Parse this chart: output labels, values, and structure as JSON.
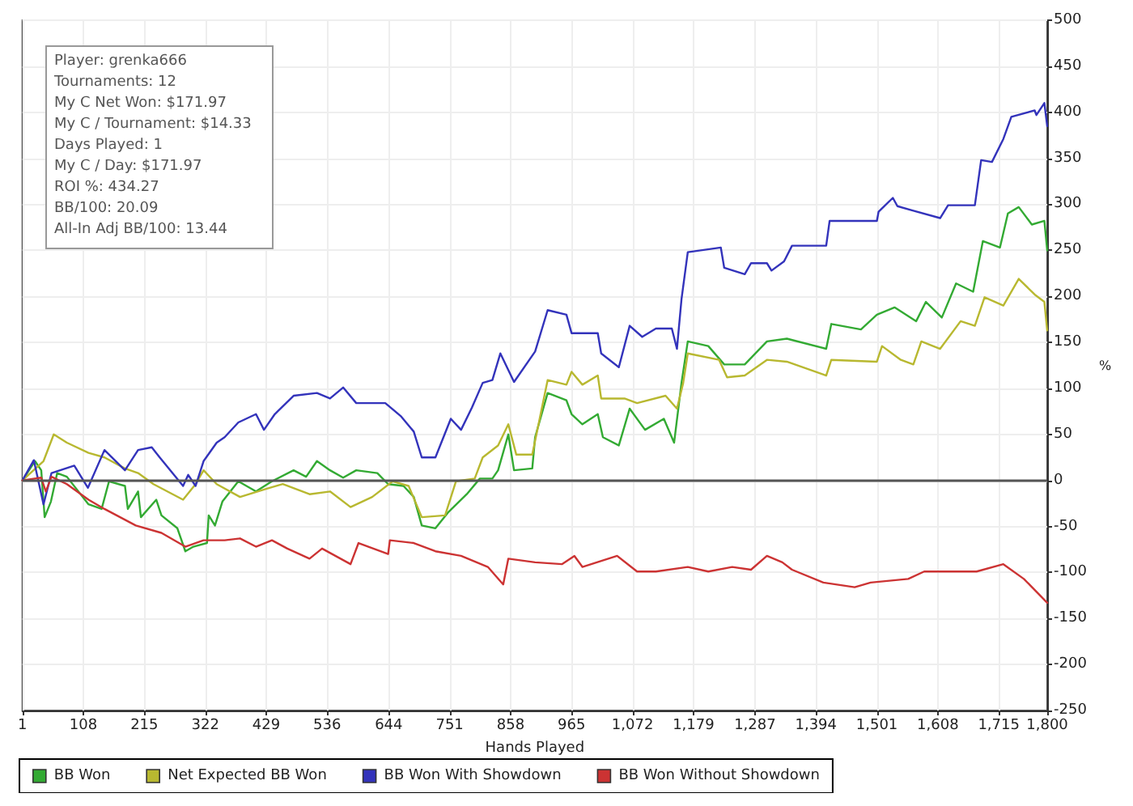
{
  "chart_data": {
    "type": "line",
    "xlabel": "Hands Played",
    "ylabel": "%",
    "xlim": [
      1,
      1800
    ],
    "xticks": [
      1,
      108,
      215,
      322,
      429,
      536,
      644,
      751,
      858,
      965,
      {
        "value": 1072,
        "label": "1,072"
      },
      {
        "value": 1179,
        "label": "1,179"
      },
      {
        "value": 1287,
        "label": "1,287"
      },
      {
        "value": 1394,
        "label": "1,394"
      },
      {
        "value": 1501,
        "label": "1,501"
      },
      {
        "value": 1608,
        "label": "1,608"
      },
      {
        "value": 1715,
        "label": "1,715"
      },
      {
        "value": 1800,
        "label": "1,800"
      }
    ],
    "ylim": [
      -250,
      500
    ],
    "yticks": [
      -250,
      -200,
      -150,
      -100,
      -50,
      0,
      50,
      100,
      150,
      200,
      250,
      300,
      350,
      400,
      450,
      500
    ],
    "grid": true,
    "legend": "bottom left",
    "marker": "none",
    "ref_lines": [
      {
        "axis": "y",
        "value": 0,
        "color": "#555555"
      }
    ],
    "annotations": [
      "Player: grenka666",
      "Tournaments: 12",
      "My C Net Won: $171.97",
      "My C / Tournament: $14.33",
      "Days Played: 1",
      "My C / Day: $171.97",
      "ROI %: 434.27",
      "BB/100: 20.09",
      "All-In Adj BB/100: 13.44"
    ],
    "series": [
      {
        "name": "BB Won",
        "color": "#33aa33",
        "x": [
          1,
          23,
          34,
          40,
          51,
          62,
          79,
          117,
          140,
          153,
          181,
          186,
          204,
          209,
          236,
          245,
          273,
          287,
          301,
          325,
          328,
          339,
          352,
          380,
          411,
          439,
          477,
          499,
          518,
          541,
          564,
          587,
          624,
          643,
          670,
          688,
          702,
          726,
          748,
          781,
          804,
          826,
          836,
          854,
          864,
          896,
          901,
          923,
          956,
          965,
          984,
          1011,
          1020,
          1048,
          1067,
          1094,
          1127,
          1145,
          1158,
          1169,
          1205,
          1233,
          1269,
          1308,
          1343,
          1412,
          1421,
          1473,
          1501,
          1532,
          1570,
          1587,
          1615,
          1640,
          1670,
          1687,
          1717,
          1731,
          1750,
          1773,
          1795,
          1800
        ],
        "values": [
          0,
          21,
          11,
          -40,
          -23,
          8,
          4,
          -26,
          -31,
          -1,
          -6,
          -31,
          -12,
          -40,
          -21,
          -38,
          -52,
          -77,
          -72,
          -68,
          -38,
          -49,
          -23,
          -1,
          -12,
          -1,
          11,
          4,
          21,
          11,
          3,
          11,
          8,
          -4,
          -6,
          -18,
          -49,
          -52,
          -35,
          -15,
          2,
          2,
          11,
          50,
          11,
          13,
          47,
          95,
          87,
          72,
          61,
          72,
          47,
          38,
          78,
          55,
          67,
          41,
          106,
          151,
          146,
          126,
          126,
          151,
          154,
          143,
          170,
          164,
          180,
          188,
          173,
          194,
          177,
          214,
          205,
          260,
          253,
          290,
          297,
          278,
          282,
          250
        ]
      },
      {
        "name": "Net Expected BB Won",
        "color": "#b8b830",
        "x": [
          1,
          38,
          56,
          79,
          117,
          145,
          181,
          204,
          231,
          283,
          305,
          319,
          342,
          383,
          430,
          458,
          505,
          541,
          577,
          615,
          651,
          679,
          702,
          743,
          762,
          795,
          809,
          836,
          854,
          868,
          896,
          923,
          956,
          965,
          984,
          1011,
          1017,
          1058,
          1080,
          1130,
          1150,
          1161,
          1169,
          1224,
          1238,
          1269,
          1308,
          1343,
          1412,
          1421,
          1501,
          1510,
          1543,
          1565,
          1579,
          1612,
          1648,
          1673,
          1690,
          1723,
          1750,
          1778,
          1795,
          1800
        ],
        "values": [
          0,
          21,
          50,
          41,
          30,
          25,
          13,
          8,
          -4,
          -21,
          -4,
          11,
          -4,
          -18,
          -9,
          -4,
          -15,
          -12,
          -29,
          -18,
          -1,
          -6,
          -40,
          -38,
          -1,
          2,
          25,
          38,
          61,
          28,
          28,
          109,
          104,
          118,
          104,
          114,
          89,
          89,
          84,
          92,
          78,
          106,
          138,
          131,
          112,
          114,
          131,
          129,
          114,
          131,
          129,
          146,
          131,
          126,
          151,
          143,
          173,
          168,
          199,
          190,
          219,
          202,
          194,
          163
        ]
      },
      {
        "name": "BB Won With Showdown",
        "color": "#3333bb",
        "x": [
          1,
          21,
          38,
          52,
          92,
          116,
          145,
          181,
          204,
          228,
          242,
          283,
          292,
          305,
          319,
          342,
          356,
          380,
          411,
          425,
          444,
          477,
          518,
          541,
          564,
          587,
          638,
          665,
          688,
          702,
          726,
          753,
          771,
          790,
          809,
          826,
          840,
          864,
          901,
          923,
          956,
          965,
          1011,
          1017,
          1048,
          1067,
          1089,
          1113,
          1141,
          1150,
          1158,
          1169,
          1227,
          1233,
          1269,
          1280,
          1308,
          1316,
          1338,
          1352,
          1412,
          1418,
          1501,
          1504,
          1529,
          1537,
          1565,
          1612,
          1626,
          1673,
          1684,
          1703,
          1723,
          1737,
          1778,
          1781,
          1795,
          1800
        ],
        "values": [
          0,
          22,
          -26,
          8,
          16,
          -8,
          33,
          11,
          33,
          36,
          25,
          -6,
          6,
          -6,
          21,
          41,
          47,
          63,
          72,
          55,
          72,
          92,
          95,
          89,
          101,
          84,
          84,
          70,
          53,
          25,
          25,
          67,
          55,
          79,
          106,
          109,
          138,
          107,
          140,
          185,
          180,
          160,
          160,
          138,
          123,
          168,
          156,
          165,
          165,
          143,
          197,
          248,
          253,
          231,
          224,
          236,
          236,
          228,
          238,
          255,
          255,
          282,
          282,
          292,
          307,
          298,
          293,
          285,
          299,
          299,
          348,
          346,
          371,
          395,
          402,
          397,
          410,
          385
        ]
      },
      {
        "name": "BB Won Without Showdown",
        "color": "#cc3333",
        "x": [
          1,
          34,
          42,
          52,
          79,
          117,
          145,
          200,
          245,
          287,
          319,
          356,
          383,
          411,
          439,
          466,
          505,
          527,
          577,
          591,
          643,
          646,
          688,
          726,
          771,
          818,
          845,
          854,
          901,
          948,
          970,
          984,
          1045,
          1080,
          1113,
          1169,
          1205,
          1247,
          1280,
          1308,
          1335,
          1352,
          1407,
          1462,
          1490,
          1556,
          1584,
          1629,
          1676,
          1723,
          1759,
          1800
        ],
        "values": [
          0,
          3,
          -12,
          4,
          -4,
          -21,
          -31,
          -49,
          -57,
          -72,
          -65,
          -65,
          -63,
          -72,
          -65,
          -74,
          -85,
          -74,
          -91,
          -68,
          -80,
          -65,
          -68,
          -77,
          -82,
          -94,
          -113,
          -85,
          -89,
          -91,
          -82,
          -94,
          -82,
          -99,
          -99,
          -94,
          -99,
          -94,
          -97,
          -82,
          -89,
          -97,
          -111,
          -116,
          -111,
          -107,
          -99,
          -99,
          -99,
          -91,
          -107,
          -133
        ]
      }
    ]
  }
}
